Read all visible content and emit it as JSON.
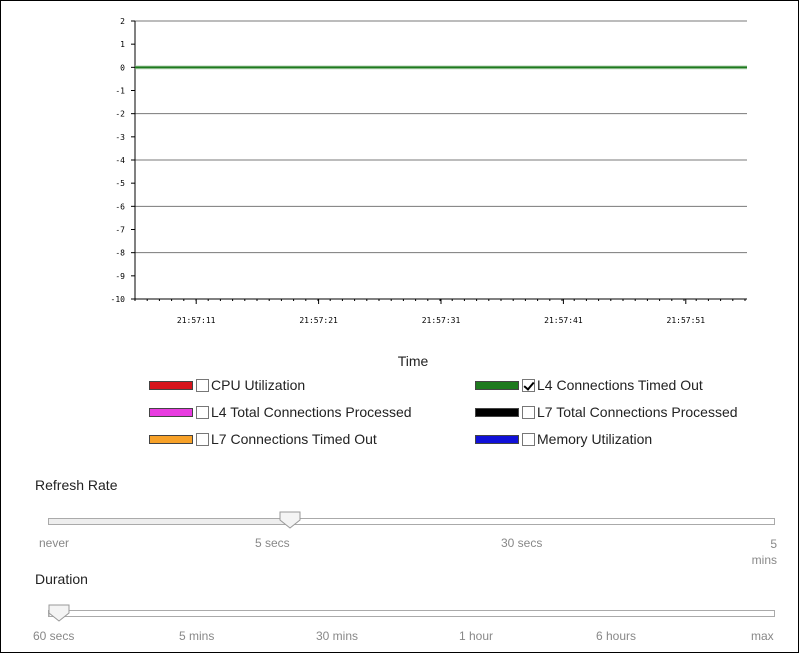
{
  "chart_data": {
    "type": "line",
    "xlabel": "Time",
    "ylabel": "",
    "ylim": [
      -10,
      2
    ],
    "y_ticks": [
      "2",
      "1",
      "0",
      "-1",
      "-2",
      "-3",
      "-4",
      "-5",
      "-6",
      "-7",
      "-8",
      "-9",
      "-10"
    ],
    "x_ticks": [
      "21:57:11",
      "21:57:21",
      "21:57:31",
      "21:57:41",
      "21:57:51"
    ],
    "grid": "horizontal every 2 units",
    "series": [
      {
        "name": "L4 Connections Timed Out",
        "color": "#1e7a1e",
        "values": [
          0,
          0,
          0,
          0,
          0
        ]
      }
    ]
  },
  "legend": {
    "items": [
      {
        "label": "CPU Utilization",
        "color": "#d6141c",
        "checked": false
      },
      {
        "label": "L4 Connections Timed Out",
        "color": "#1e7a1e",
        "checked": true
      },
      {
        "label": "L4 Total Connections Processed",
        "color": "#e83ce0",
        "checked": false
      },
      {
        "label": "L7 Total Connections Processed",
        "color": "#000000",
        "checked": false
      },
      {
        "label": "L7 Connections Timed Out",
        "color": "#f7a128",
        "checked": false
      },
      {
        "label": "Memory Utilization",
        "color": "#1010d8",
        "checked": false
      }
    ]
  },
  "refresh_rate": {
    "title": "Refresh Rate",
    "options": [
      "never",
      "5 secs",
      "30 secs",
      "5 mins"
    ],
    "selected": "5 secs",
    "level": 0.333
  },
  "duration": {
    "title": "Duration",
    "options": [
      "60 secs",
      "5 mins",
      "30 mins",
      "1 hour",
      "6 hours",
      "max"
    ],
    "selected": "60 secs",
    "level": 0.0
  }
}
